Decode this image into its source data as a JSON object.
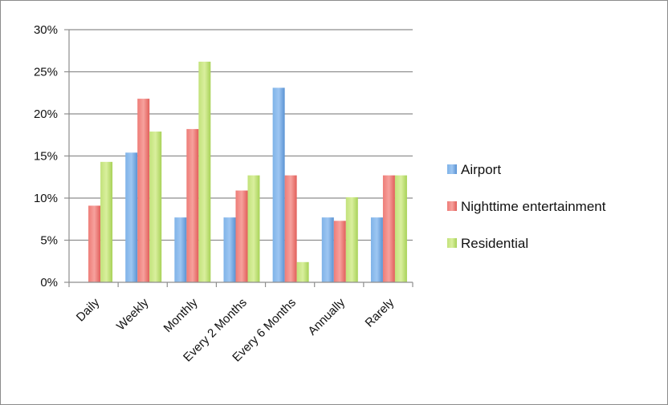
{
  "chart_data": {
    "type": "bar",
    "categories": [
      "Daily",
      "Weekly",
      "Monthly",
      "Every 2 Months",
      "Every 6 Months",
      "Annually",
      "Rarely"
    ],
    "series": [
      {
        "name": "Airport",
        "values": [
          0,
          15.4,
          7.7,
          7.7,
          23.1,
          7.7,
          7.7
        ],
        "color": "#5b9bd5"
      },
      {
        "name": "Nighttime entertainment",
        "values": [
          9.1,
          21.8,
          18.2,
          10.9,
          12.7,
          7.3,
          12.7
        ],
        "color": "#e86a66"
      },
      {
        "name": "Residential",
        "values": [
          14.3,
          17.9,
          26.2,
          12.7,
          2.4,
          10.1,
          12.7
        ],
        "color": "#b5dc65"
      }
    ],
    "yticks": [
      "0%",
      "5%",
      "10%",
      "15%",
      "20%",
      "25%",
      "30%"
    ],
    "ylim": [
      0,
      30
    ],
    "grid": true,
    "legend_position": "right"
  }
}
